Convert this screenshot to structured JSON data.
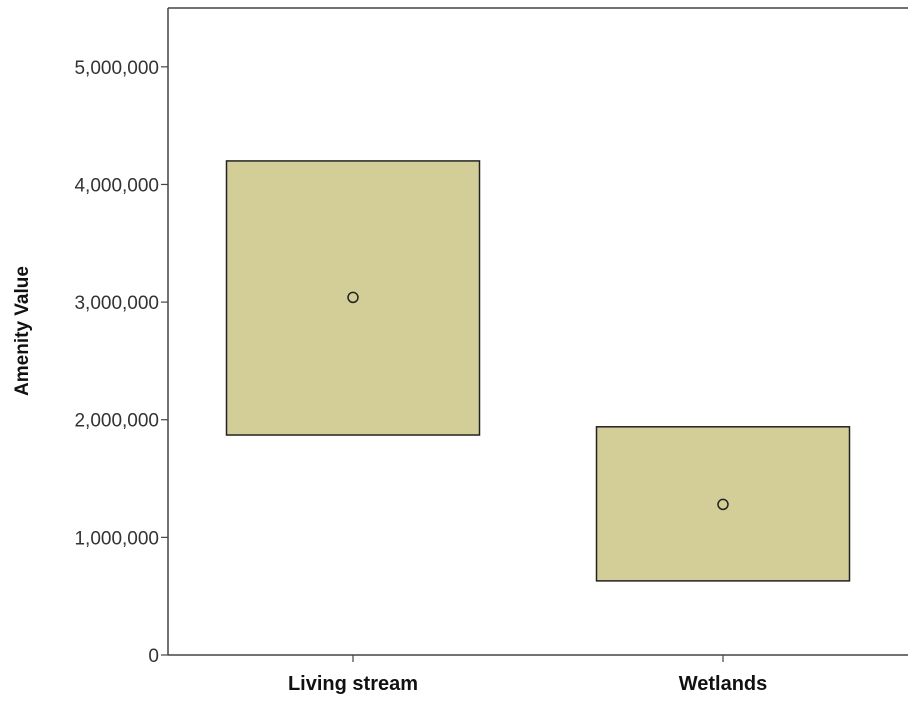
{
  "chart_data": {
    "type": "box",
    "title": "",
    "xlabel": "",
    "ylabel": "Amenity Value",
    "categories": [
      "Living stream",
      "Wetlands"
    ],
    "ylim": [
      0,
      5500000
    ],
    "y_ticks": [
      0,
      1000000,
      2000000,
      3000000,
      4000000,
      5000000
    ],
    "y_tick_labels": [
      "0",
      "1,000,000",
      "2,000,000",
      "3,000,000",
      "4,000,000",
      "5,000,000"
    ],
    "series": [
      {
        "boxes": [
          {
            "category": "Living stream",
            "lower": 1870000,
            "upper": 4200000,
            "center": 3040000
          },
          {
            "category": "Wetlands",
            "lower": 630000,
            "upper": 1940000,
            "center": 1280000
          }
        ]
      }
    ],
    "grid": false,
    "legend": "none",
    "colors": {
      "box_fill": "#d3cd98",
      "box_stroke": "#222222",
      "marker_fill": "#d3cd98",
      "axis": "#444444",
      "background": "#ffffff"
    }
  }
}
